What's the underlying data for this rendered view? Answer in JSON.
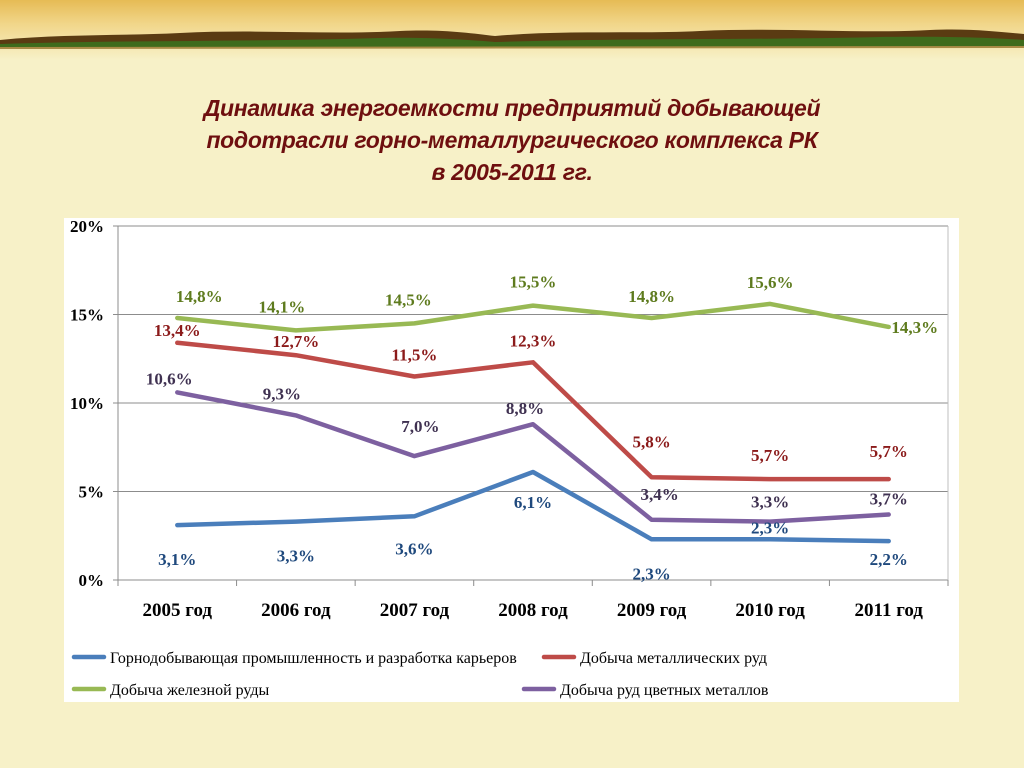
{
  "page": {
    "title_lines": [
      "Динамика энергоемкости предприятий добывающей",
      "подотрасли горно-металлургического комплекса РК",
      "в 2005-2011 гг."
    ]
  },
  "chart_data": {
    "type": "line",
    "title": "Динамика энергоемкости предприятий добывающей подотрасли горно-металлургического комплекса РК в 2005-2011 гг.",
    "categories": [
      "2005 год",
      "2006 год",
      "2007 год",
      "2008 год",
      "2009 год",
      "2010 год",
      "2011 год"
    ],
    "yticks": [
      "0%",
      "5%",
      "10%",
      "15%",
      "20%"
    ],
    "ylim": [
      0,
      20
    ],
    "grid": true,
    "legend_position": "bottom",
    "series": [
      {
        "name": "Горнодобывающая промышленность и разработка карьеров",
        "color": "#4a7ebb",
        "label_color": "#1f497d",
        "values": [
          3.1,
          3.3,
          3.6,
          6.1,
          2.3,
          2.3,
          2.2
        ],
        "labels": [
          "3,1%",
          "3,3%",
          "3,6%",
          "6,1%",
          "2,3%",
          "2,3%",
          "2,2%"
        ]
      },
      {
        "name": "Добыча металлических руд",
        "color": "#be4b48",
        "label_color": "#8b1a1a",
        "values": [
          13.4,
          12.7,
          11.5,
          12.3,
          5.8,
          5.7,
          5.7
        ],
        "labels": [
          "13,4%",
          "12,7%",
          "11,5%",
          "12,3%",
          "5,8%",
          "5,7%",
          "5,7%"
        ]
      },
      {
        "name": "Добыча железной руды",
        "color": "#98b954",
        "label_color": "#5e7b1e",
        "values": [
          14.8,
          14.1,
          14.5,
          15.5,
          14.8,
          15.6,
          14.3
        ],
        "labels": [
          "14,8%",
          "14,1%",
          "14,5%",
          "15,5%",
          "14,8%",
          "15,6%",
          "14,3%"
        ]
      },
      {
        "name": "Добыча руд цветных металлов",
        "color": "#7d60a0",
        "label_color": "#3f3151",
        "values": [
          10.6,
          9.3,
          7.0,
          8.8,
          3.4,
          3.3,
          3.7
        ],
        "labels": [
          "10,6%",
          "9,3%",
          "7,0%",
          "8,8%",
          "3,4%",
          "3,3%",
          "3,7%"
        ]
      }
    ]
  }
}
